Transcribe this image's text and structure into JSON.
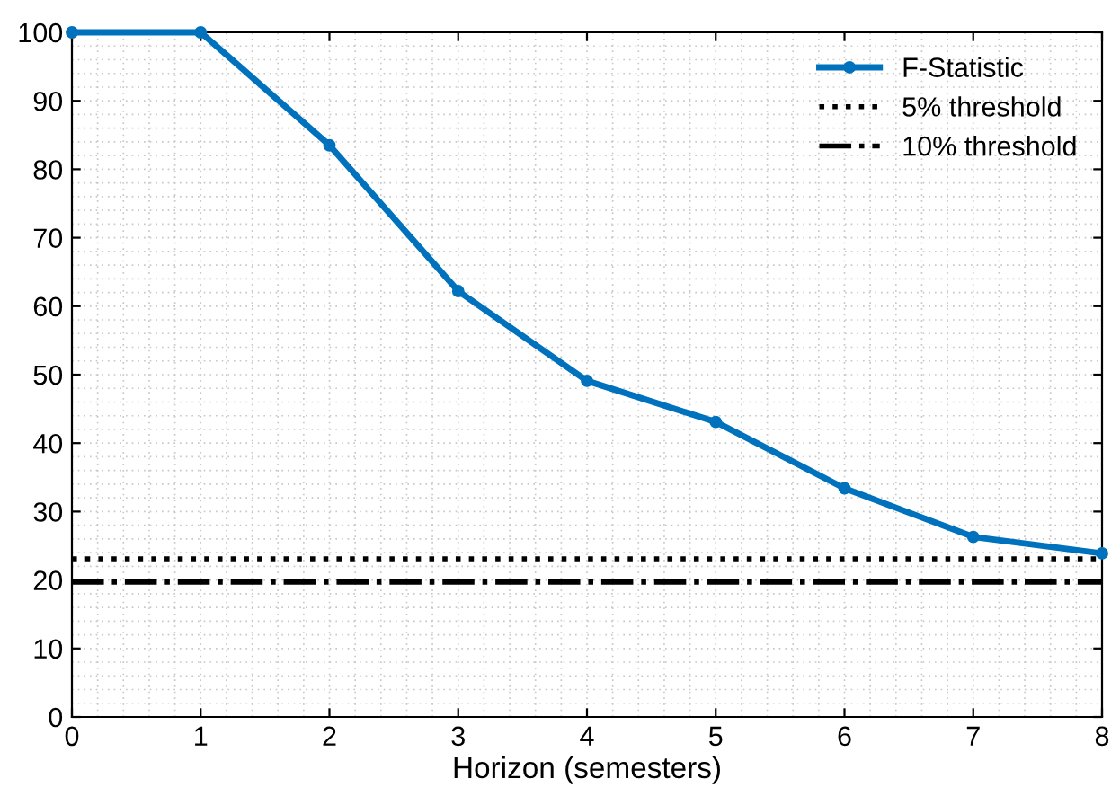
{
  "chart_data": {
    "type": "line",
    "xlabel": "Horizon (semesters)",
    "x": [
      0,
      1,
      2,
      3,
      4,
      5,
      6,
      7,
      8
    ],
    "series": [
      {
        "name": "F-Statistic",
        "color": "#0072bd",
        "values": [
          100,
          100,
          83.5,
          62.2,
          49.1,
          43.1,
          33.4,
          26.3,
          23.9
        ]
      }
    ],
    "ref_lines": [
      {
        "axis": "y",
        "value": 23.1,
        "label": "5% threshold",
        "color": "#000000",
        "line_style": "dotted"
      },
      {
        "axis": "y",
        "value": 19.7,
        "label": "10% threshold",
        "color": "#000000",
        "line_style": "dashdot"
      }
    ],
    "xlim": [
      0,
      8
    ],
    "ylim": [
      0,
      100
    ],
    "xticks": [
      0,
      1,
      2,
      3,
      4,
      5,
      6,
      7,
      8
    ],
    "yticks": [
      0,
      10,
      20,
      30,
      40,
      50,
      60,
      70,
      80,
      90,
      100
    ],
    "grid": true,
    "legend": "top right",
    "marker": "circle",
    "line_style": "solid"
  }
}
